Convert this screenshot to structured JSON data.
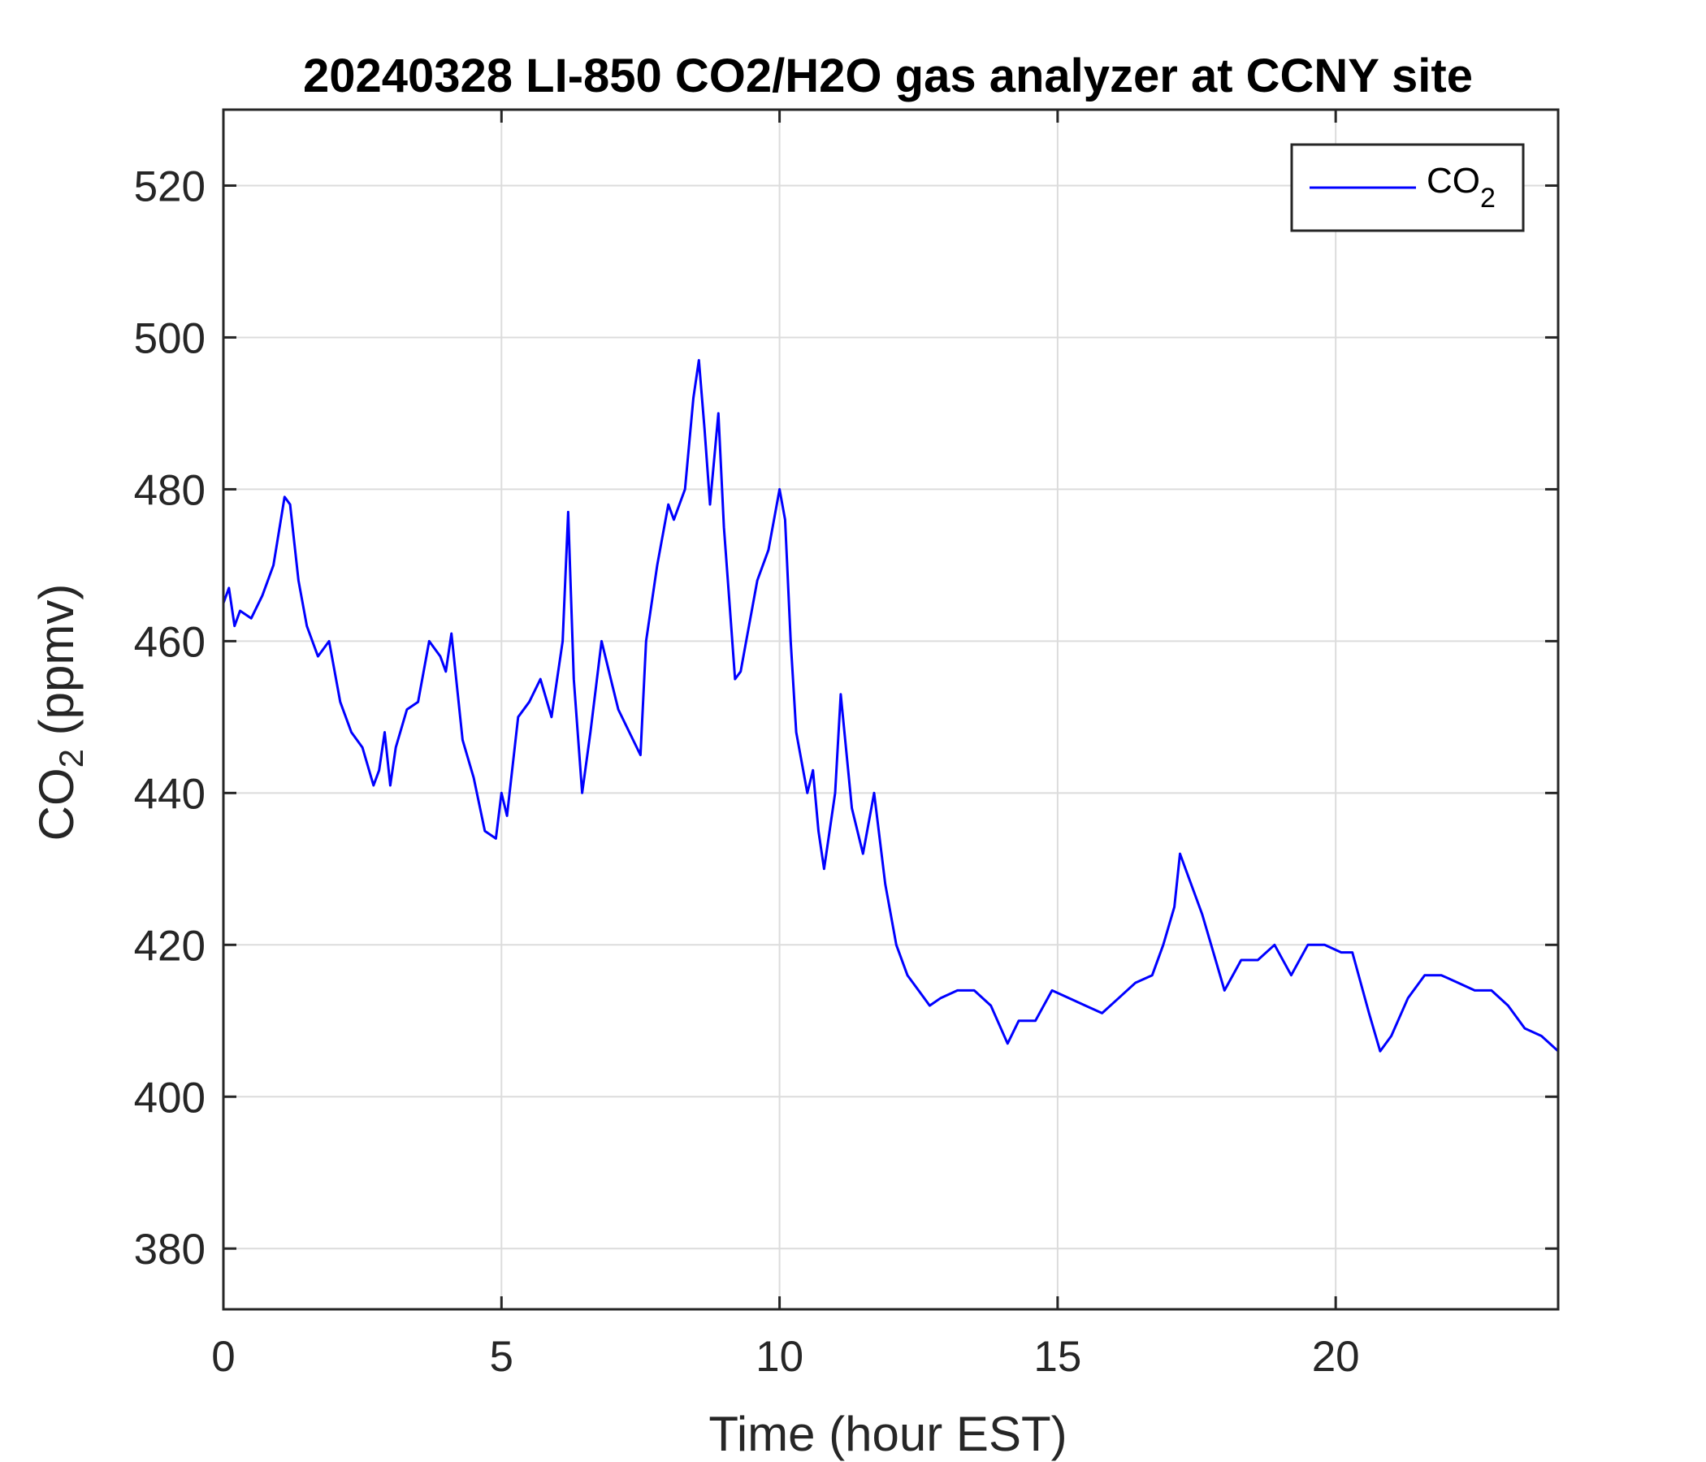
{
  "chart_data": {
    "type": "line",
    "title": "20240328 LI-850 CO2/H2O gas analyzer at CCNY site",
    "xlabel": "Time (hour EST)",
    "ylabel": {
      "main": "CO",
      "sub": "2",
      "unit": " (ppmv)"
    },
    "xlim": [
      0,
      24
    ],
    "ylim": [
      372,
      530
    ],
    "xticks": [
      0,
      5,
      10,
      15,
      20
    ],
    "yticks": [
      380,
      400,
      420,
      440,
      460,
      480,
      500,
      520
    ],
    "grid": true,
    "legend_position": "top-right",
    "series": [
      {
        "name": "CO2",
        "legend_label": {
          "main": "CO",
          "sub": "2"
        },
        "color": "#0000ff",
        "x": [
          0,
          0.1,
          0.2,
          0.3,
          0.5,
          0.7,
          0.9,
          1.1,
          1.2,
          1.35,
          1.5,
          1.7,
          1.9,
          2.1,
          2.3,
          2.5,
          2.7,
          2.8,
          2.9,
          3.0,
          3.1,
          3.3,
          3.5,
          3.7,
          3.9,
          4.0,
          4.1,
          4.3,
          4.5,
          4.7,
          4.9,
          5.0,
          5.1,
          5.3,
          5.5,
          5.7,
          5.9,
          6.1,
          6.2,
          6.3,
          6.45,
          6.6,
          6.8,
          7.0,
          7.1,
          7.3,
          7.5,
          7.6,
          7.8,
          8.0,
          8.1,
          8.3,
          8.45,
          8.55,
          8.65,
          8.75,
          8.9,
          9.0,
          9.1,
          9.2,
          9.3,
          9.4,
          9.6,
          9.8,
          10.0,
          10.1,
          10.2,
          10.3,
          10.5,
          10.6,
          10.7,
          10.8,
          11.0,
          11.1,
          11.3,
          11.5,
          11.7,
          11.9,
          12.1,
          12.3,
          12.5,
          12.7,
          12.9,
          13.2,
          13.5,
          13.8,
          14.1,
          14.3,
          14.6,
          14.9,
          15.2,
          15.5,
          15.8,
          16.1,
          16.4,
          16.7,
          16.9,
          17.1,
          17.2,
          17.4,
          17.6,
          17.8,
          18.0,
          18.3,
          18.6,
          18.9,
          19.2,
          19.5,
          19.8,
          20.1,
          20.3,
          20.6,
          20.8,
          21.0,
          21.3,
          21.6,
          21.9,
          22.2,
          22.5,
          22.8,
          23.1,
          23.4,
          23.7,
          24.0
        ],
        "y": [
          465,
          467,
          462,
          464,
          463,
          466,
          470,
          479,
          478,
          468,
          462,
          458,
          460,
          452,
          448,
          446,
          441,
          443,
          448,
          441,
          446,
          451,
          452,
          460,
          458,
          456,
          461,
          447,
          442,
          435,
          434,
          440,
          437,
          450,
          452,
          455,
          450,
          460,
          477,
          455,
          440,
          448,
          460,
          454,
          451,
          448,
          445,
          460,
          470,
          478,
          476,
          480,
          492,
          497,
          488,
          478,
          490,
          475,
          465,
          455,
          456,
          460,
          468,
          472,
          480,
          476,
          460,
          448,
          440,
          443,
          435,
          430,
          440,
          453,
          438,
          432,
          440,
          428,
          420,
          416,
          414,
          412,
          413,
          414,
          414,
          412,
          407,
          410,
          410,
          414,
          413,
          412,
          411,
          413,
          415,
          416,
          420,
          425,
          432,
          428,
          424,
          419,
          414,
          418,
          418,
          420,
          416,
          420,
          420,
          419,
          419,
          411,
          406,
          408,
          413,
          416,
          416,
          415,
          414,
          414,
          412,
          409,
          408,
          406
        ]
      }
    ]
  }
}
